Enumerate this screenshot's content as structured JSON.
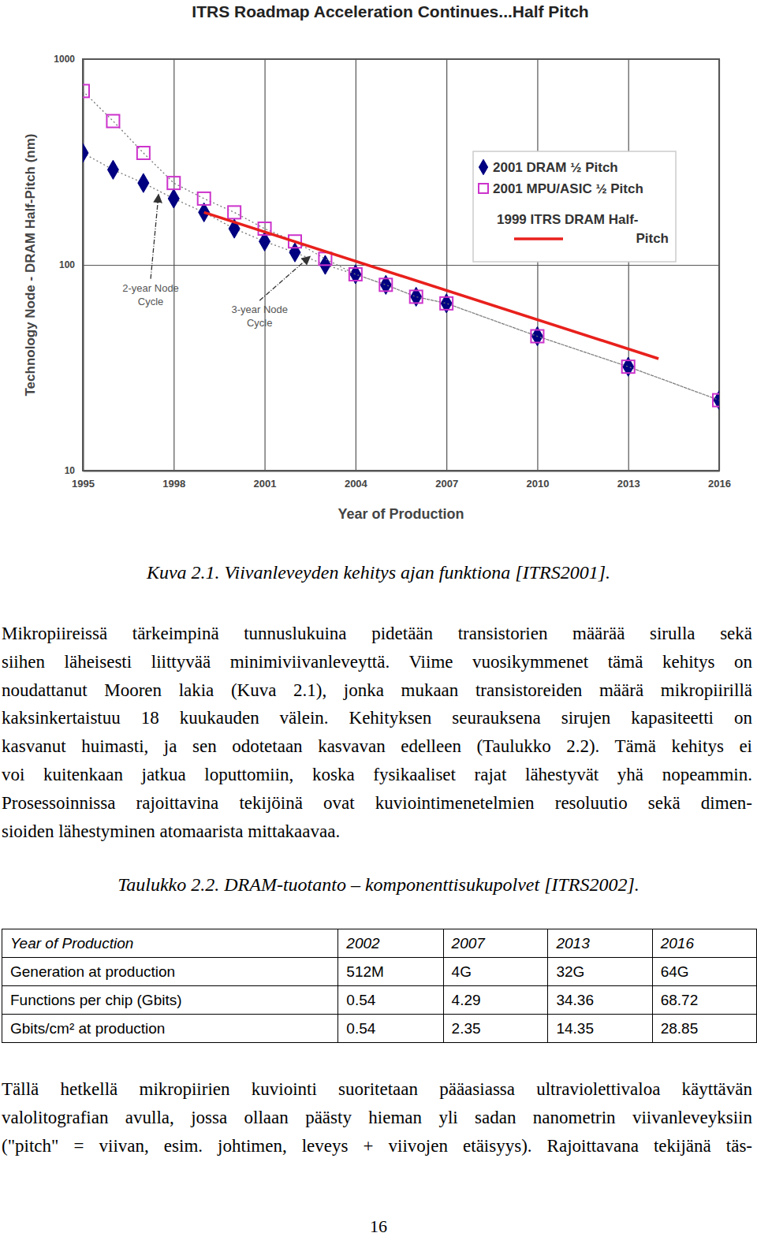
{
  "chart_data": {
    "type": "line",
    "title": "ITRS Roadmap Acceleration Continues...Half Pitch",
    "x_label": "Year of Production",
    "y_label": "Technology Node - DRAM Half-Pitch (nm)",
    "x": [
      1995,
      1996,
      1997,
      1998,
      1999,
      2000,
      2001,
      2002,
      2003,
      2004,
      2005,
      2006,
      2007,
      2010,
      2013,
      2016
    ],
    "series": [
      {
        "name": "2001 DRAM ½ Pitch",
        "color": "#000080",
        "marker": "diamond",
        "line_style": "dotted",
        "values": [
          350,
          290,
          250,
          210,
          180,
          150,
          130,
          115,
          100,
          90,
          80,
          70,
          65,
          45,
          32,
          22
        ]
      },
      {
        "name": "2001 MPU/ASIC ½ Pitch",
        "color": "#cc33cc",
        "marker": "square",
        "line_style": "dotted",
        "values": [
          700,
          500,
          350,
          250,
          210,
          180,
          150,
          130,
          107,
          90,
          80,
          70,
          65,
          45,
          32,
          22
        ]
      },
      {
        "name": "1999 ITRS DRAM Half-Pitch",
        "color": "#e8201c",
        "marker": "none",
        "line_style": "solid",
        "x": [
          1999,
          2014
        ],
        "values": [
          180,
          35
        ]
      }
    ],
    "xlim": [
      1995,
      2016
    ],
    "xticks": [
      1995,
      1998,
      2001,
      2004,
      2007,
      2010,
      2013,
      2016
    ],
    "ylim": [
      10,
      1000
    ],
    "yticks": [
      10,
      100,
      1000
    ],
    "log": "y",
    "grid": true,
    "legend": "top-right",
    "annotations": [
      {
        "text": "2-year Node Cycle",
        "x": 1997.5,
        "y": 220
      },
      {
        "text": "3-year Node Cycle",
        "x": 2002.5,
        "y": 110
      }
    ]
  },
  "caption": "Kuva 2.1. Viivanleveyden kehitys ajan funktiona [ITRS2001].",
  "paragraphs": [
    [
      "Mikropiireissä tärkeimpinä tunnuslukuina pidetään transistorien määrää sirulla sekä",
      "siihen läheisesti liittyvää minimiviivanleveyttä. Viime vuosikymmenet tämä kehitys on",
      "noudattanut Mooren lakia (Kuva 2.1), jonka mukaan transistoreiden määrä mikropiirillä",
      "kaksinkertaistuu 18 kuukauden välein. Kehityksen seurauksena sirujen kapasiteetti on",
      "kasvanut huimasti, ja sen odotetaan kasvavan edelleen (Taulukko 2.2). Tämä kehitys ei",
      "voi kuitenkaan jatkua loputtomiin, koska fysikaaliset rajat lähestyvät yhä nopeammin.",
      "Prosessoinnissa rajoittavina tekijöinä ovat kuviointimenetelmien resoluutio sekä dimen-",
      "sioiden lähestyminen atomaarista mittakaavaa."
    ],
    [
      "Tällä hetkellä mikropiirien kuviointi suoritetaan pääasiassa ultraviolettivaloa käyttävän",
      "valolitografian avulla, jossa ollaan päästy hieman yli sadan nanometrin viivanleveyksiin",
      "(\"pitch\" = viivan, esim. johtimen, leveys + viivojen etäisyys). Rajoittavana tekijänä täs-"
    ]
  ],
  "table_caption": "Taulukko 2.2. DRAM-tuotanto – komponenttisukupolvet [ITRS2002].",
  "table": {
    "header": [
      "Year of Production",
      2002,
      2007,
      2013,
      2016
    ],
    "rows": [
      [
        "Generation at production",
        "512M",
        "4G",
        "32G",
        "64G"
      ],
      [
        "Functions per chip (Gbits)",
        0.54,
        4.29,
        34.36,
        68.72
      ],
      [
        "Gbits/cm² at production",
        0.54,
        2.35,
        14.35,
        28.85
      ]
    ]
  },
  "page_number": 16
}
